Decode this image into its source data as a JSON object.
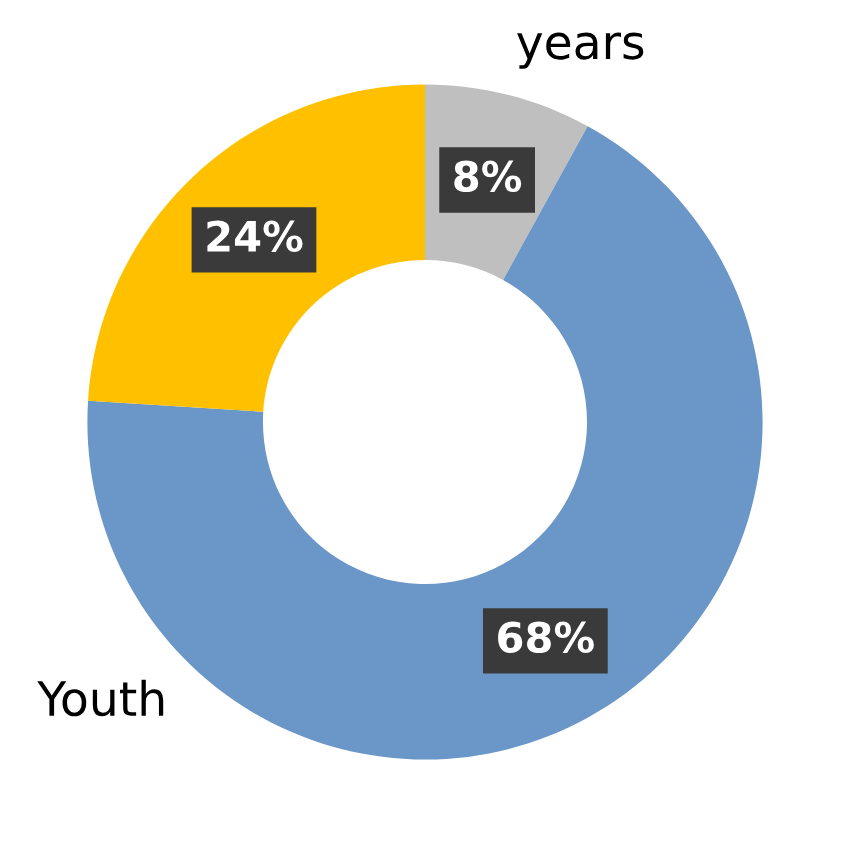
{
  "chart_data": {
    "type": "donut",
    "categories": [
      "years",
      "Youth",
      null
    ],
    "values": [
      8,
      68,
      24
    ],
    "colors": [
      "#bfbfbf",
      "#6a96c8",
      "#ffc000"
    ],
    "value_labels": [
      "8%",
      "68%",
      "24%"
    ],
    "legend": false
  }
}
